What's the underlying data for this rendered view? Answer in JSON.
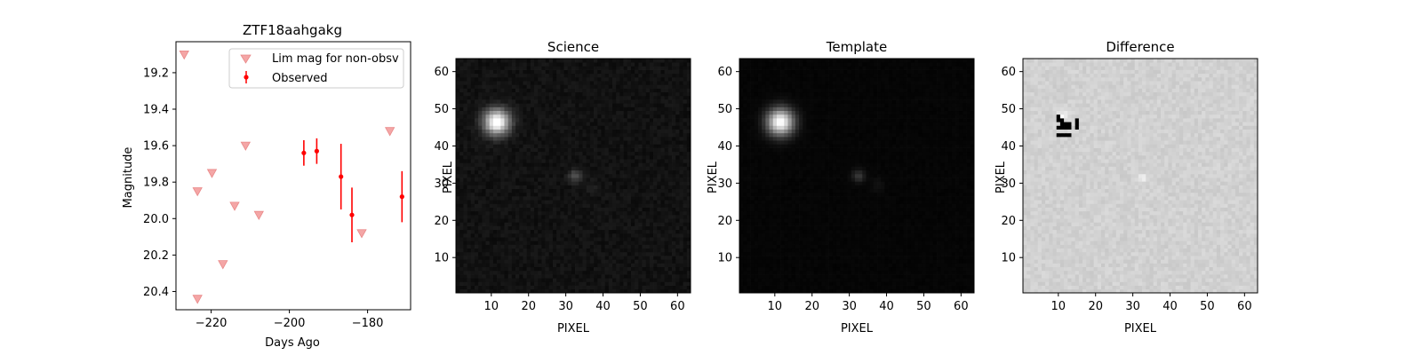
{
  "chart_data": [
    {
      "type": "scatter",
      "title": "ZTF18aahgakg",
      "xlabel": "Days Ago",
      "ylabel": "Magnitude",
      "xlim": [
        -229,
        -169
      ],
      "ylim": [
        20.5,
        19.03
      ],
      "y_inverted": true,
      "xticks": [
        -220,
        -200,
        -180
      ],
      "yticks": [
        19.2,
        19.4,
        19.6,
        19.8,
        20.0,
        20.2,
        20.4
      ],
      "legend_position": "top-right",
      "series": [
        {
          "name": "Lim mag for non-obsv",
          "marker": "triangle-down",
          "color": "#f4a6a6",
          "x": [
            -226.9,
            -223.5,
            -219.8,
            -217.0,
            -214.0,
            -211.2,
            -207.8,
            -181.5,
            -174.3,
            -223.5
          ],
          "y": [
            19.1,
            19.85,
            19.75,
            20.25,
            19.93,
            19.6,
            19.98,
            20.08,
            19.52,
            20.44
          ]
        },
        {
          "name": "Observed",
          "marker": "point-errorbar",
          "color": "#ff0000",
          "x": [
            -196.3,
            -193.0,
            -186.8,
            -184.0,
            -171.2
          ],
          "y": [
            19.64,
            19.63,
            19.77,
            19.98,
            19.88
          ],
          "err": [
            0.07,
            0.07,
            0.18,
            0.15,
            0.14
          ]
        }
      ]
    },
    {
      "type": "heatmap",
      "title": "Science",
      "xlabel": "PIXEL",
      "ylabel": "PIXEL",
      "grid_size": 63,
      "colormap": "gray",
      "xticks": [
        10,
        20,
        30,
        40,
        50,
        60
      ],
      "yticks": [
        10,
        20,
        30,
        40,
        50,
        60
      ],
      "background_level": 0.07,
      "noise": 0.03,
      "sources": [
        {
          "x": 11.5,
          "y": 46.5,
          "amp": 1.0,
          "sigma": 2.4
        },
        {
          "x": 32.5,
          "y": 32.0,
          "amp": 0.25,
          "sigma": 1.2
        },
        {
          "x": 37.0,
          "y": 29.0,
          "amp": 0.05,
          "sigma": 1.4
        }
      ]
    },
    {
      "type": "heatmap",
      "title": "Template",
      "xlabel": "PIXEL",
      "ylabel": "PIXEL",
      "grid_size": 63,
      "colormap": "gray",
      "xticks": [
        10,
        20,
        30,
        40,
        50,
        60
      ],
      "yticks": [
        10,
        20,
        30,
        40,
        50,
        60
      ],
      "background_level": 0.02,
      "noise": 0.008,
      "sources": [
        {
          "x": 11.5,
          "y": 46.5,
          "amp": 1.0,
          "sigma": 2.5
        },
        {
          "x": 32.5,
          "y": 32.0,
          "amp": 0.2,
          "sigma": 1.2
        },
        {
          "x": 37.5,
          "y": 29.5,
          "amp": 0.05,
          "sigma": 1.3
        }
      ]
    },
    {
      "type": "heatmap",
      "title": "Difference",
      "xlabel": "PIXEL",
      "ylabel": "PIXEL",
      "grid_size": 63,
      "colormap": "gray",
      "xticks": [
        10,
        20,
        30,
        40,
        50,
        60
      ],
      "yticks": [
        10,
        20,
        30,
        40,
        50,
        60
      ],
      "background_level": 0.82,
      "noise": 0.035,
      "sources": [
        {
          "x": 11.0,
          "y": 48.0,
          "amp": 0.15,
          "sigma": 1.0
        },
        {
          "x": 32.5,
          "y": 31.5,
          "amp": 0.12,
          "sigma": 0.8
        }
      ],
      "dark_pixels": [
        [
          10,
          45
        ],
        [
          11,
          45
        ],
        [
          11,
          46
        ],
        [
          12,
          46
        ],
        [
          12,
          45
        ],
        [
          13,
          46
        ],
        [
          13,
          45
        ],
        [
          15,
          46
        ],
        [
          15,
          45
        ],
        [
          15,
          47
        ],
        [
          10,
          43
        ],
        [
          11,
          43
        ],
        [
          12,
          43
        ],
        [
          13,
          43
        ],
        [
          10,
          47
        ],
        [
          10,
          48
        ],
        [
          11,
          47
        ]
      ]
    }
  ]
}
